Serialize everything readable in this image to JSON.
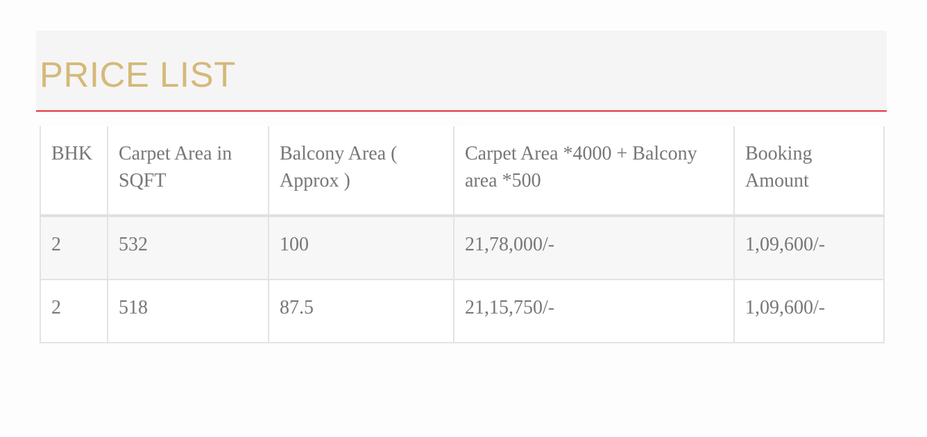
{
  "title": "PRICE LIST",
  "colors": {
    "title": "#d5b979",
    "divider": "#e8333a"
  },
  "table": {
    "headers": [
      "BHK",
      "Carpet Area in SQFT",
      "Balcony Area ( Approx )",
      "Carpet Area *4000 + Balcony area *500",
      "Booking Amount"
    ],
    "rows": [
      [
        "2",
        "532",
        "100",
        "21,78,000/-",
        "1,09,600/-"
      ],
      [
        "2",
        "518",
        "87.5",
        "21,15,750/-",
        "1,09,600/-"
      ]
    ]
  }
}
